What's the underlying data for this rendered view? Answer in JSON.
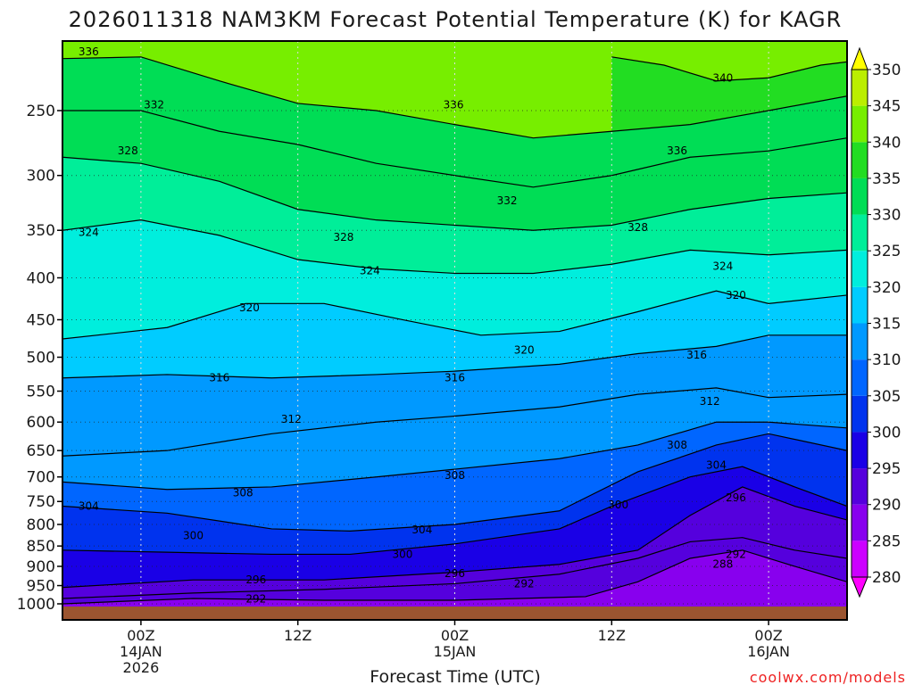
{
  "chart_data": {
    "type": "heatmap",
    "title": "2026011318 NAM3KM Forecast Potential Temperature (K) for KAGR",
    "xlabel": "Forecast Time (UTC)",
    "ylabel": "",
    "credit": "coolwx.com/models",
    "x_ticks": [
      {
        "hour": 6,
        "lines": [
          "00Z",
          "14JAN",
          "2026"
        ]
      },
      {
        "hour": 18,
        "lines": [
          "12Z"
        ]
      },
      {
        "hour": 30,
        "lines": [
          "00Z",
          "15JAN"
        ]
      },
      {
        "hour": 42,
        "lines": [
          "12Z"
        ]
      },
      {
        "hour": 54,
        "lines": [
          "00Z",
          "16JAN"
        ]
      }
    ],
    "xlim": [
      0,
      60
    ],
    "y_ticks": [
      250,
      300,
      350,
      400,
      450,
      500,
      550,
      600,
      650,
      700,
      750,
      800,
      850,
      900,
      950,
      1000
    ],
    "ylim_hpa": [
      1000,
      200
    ],
    "colorbar": {
      "levels": [
        280,
        285,
        290,
        295,
        300,
        305,
        310,
        315,
        320,
        325,
        330,
        335,
        340,
        345,
        350
      ],
      "colors": [
        "#ff00ff",
        "#cc00ff",
        "#8800ee",
        "#5500dd",
        "#1a00e6",
        "#0033ee",
        "#0066ff",
        "#0099ff",
        "#00ccff",
        "#00eedd",
        "#00ee99",
        "#00dd55",
        "#22dd22",
        "#77ee00",
        "#bbee00",
        "#ffff00"
      ]
    },
    "contours": [
      {
        "value": 288,
        "points": [
          [
            0,
            1000
          ],
          [
            10,
            985
          ],
          [
            20,
            990
          ],
          [
            30,
            990
          ],
          [
            40,
            980
          ],
          [
            44,
            940
          ],
          [
            48,
            880
          ],
          [
            52,
            860
          ],
          [
            56,
            900
          ],
          [
            60,
            940
          ]
        ]
      },
      {
        "value": 292,
        "points": [
          [
            0,
            985
          ],
          [
            10,
            970
          ],
          [
            20,
            960
          ],
          [
            30,
            945
          ],
          [
            38,
            920
          ],
          [
            44,
            880
          ],
          [
            48,
            840
          ],
          [
            52,
            830
          ],
          [
            56,
            860
          ],
          [
            60,
            880
          ]
        ]
      },
      {
        "value": 296,
        "points": [
          [
            0,
            955
          ],
          [
            10,
            935
          ],
          [
            20,
            935
          ],
          [
            30,
            915
          ],
          [
            38,
            895
          ],
          [
            44,
            860
          ],
          [
            48,
            780
          ],
          [
            52,
            720
          ],
          [
            56,
            760
          ],
          [
            60,
            790
          ]
        ]
      },
      {
        "value": 300,
        "points": [
          [
            0,
            860
          ],
          [
            8,
            865
          ],
          [
            16,
            870
          ],
          [
            22,
            870
          ],
          [
            30,
            845
          ],
          [
            38,
            810
          ],
          [
            42,
            760
          ],
          [
            48,
            700
          ],
          [
            52,
            680
          ],
          [
            56,
            720
          ],
          [
            60,
            760
          ]
        ]
      },
      {
        "value": 304,
        "points": [
          [
            0,
            760
          ],
          [
            8,
            775
          ],
          [
            16,
            810
          ],
          [
            22,
            815
          ],
          [
            30,
            800
          ],
          [
            38,
            770
          ],
          [
            44,
            690
          ],
          [
            50,
            640
          ],
          [
            54,
            620
          ],
          [
            60,
            650
          ]
        ]
      },
      {
        "value": 308,
        "points": [
          [
            0,
            710
          ],
          [
            8,
            725
          ],
          [
            16,
            720
          ],
          [
            24,
            700
          ],
          [
            30,
            685
          ],
          [
            38,
            665
          ],
          [
            44,
            640
          ],
          [
            50,
            600
          ],
          [
            54,
            600
          ],
          [
            60,
            610
          ]
        ]
      },
      {
        "value": 312,
        "points": [
          [
            0,
            660
          ],
          [
            8,
            650
          ],
          [
            16,
            620
          ],
          [
            24,
            600
          ],
          [
            30,
            590
          ],
          [
            38,
            575
          ],
          [
            44,
            555
          ],
          [
            50,
            545
          ],
          [
            54,
            560
          ],
          [
            60,
            555
          ]
        ]
      },
      {
        "value": 316,
        "points": [
          [
            0,
            530
          ],
          [
            8,
            525
          ],
          [
            16,
            530
          ],
          [
            24,
            525
          ],
          [
            30,
            520
          ],
          [
            38,
            510
          ],
          [
            44,
            495
          ],
          [
            50,
            485
          ],
          [
            54,
            470
          ],
          [
            60,
            470
          ]
        ]
      },
      {
        "value": 320,
        "points": [
          [
            0,
            475
          ],
          [
            8,
            460
          ],
          [
            14,
            430
          ],
          [
            20,
            430
          ],
          [
            26,
            450
          ],
          [
            32,
            470
          ],
          [
            38,
            465
          ],
          [
            44,
            440
          ],
          [
            50,
            415
          ],
          [
            54,
            430
          ],
          [
            60,
            420
          ]
        ]
      },
      {
        "value": 324,
        "points": [
          [
            0,
            350
          ],
          [
            6,
            340
          ],
          [
            12,
            355
          ],
          [
            18,
            380
          ],
          [
            24,
            390
          ],
          [
            30,
            395
          ],
          [
            36,
            395
          ],
          [
            42,
            385
          ],
          [
            48,
            370
          ],
          [
            54,
            375
          ],
          [
            60,
            370
          ]
        ]
      },
      {
        "value": 328,
        "points": [
          [
            0,
            285
          ],
          [
            6,
            290
          ],
          [
            12,
            305
          ],
          [
            18,
            330
          ],
          [
            24,
            340
          ],
          [
            30,
            345
          ],
          [
            36,
            350
          ],
          [
            42,
            345
          ],
          [
            48,
            330
          ],
          [
            54,
            320
          ],
          [
            60,
            315
          ]
        ]
      },
      {
        "value": 332,
        "points": [
          [
            0,
            250
          ],
          [
            6,
            250
          ],
          [
            12,
            265
          ],
          [
            18,
            275
          ],
          [
            24,
            290
          ],
          [
            30,
            300
          ],
          [
            36,
            310
          ],
          [
            42,
            300
          ],
          [
            48,
            285
          ],
          [
            54,
            280
          ],
          [
            60,
            270
          ]
        ]
      },
      {
        "value": 336,
        "points": [
          [
            0,
            216
          ],
          [
            6,
            215
          ],
          [
            12,
            230
          ],
          [
            18,
            245
          ],
          [
            24,
            250
          ],
          [
            30,
            260
          ],
          [
            36,
            270
          ],
          [
            42,
            265
          ],
          [
            48,
            260
          ],
          [
            54,
            250
          ],
          [
            60,
            240
          ]
        ]
      },
      {
        "value": 340,
        "points": [
          [
            42,
            215
          ],
          [
            46,
            220
          ],
          [
            50,
            230
          ],
          [
            54,
            228
          ],
          [
            58,
            220
          ],
          [
            60,
            218
          ]
        ]
      }
    ],
    "contour_labels": [
      {
        "value": "336",
        "hour": 2,
        "hpa": 212
      },
      {
        "value": "332",
        "hour": 7,
        "hpa": 246
      },
      {
        "value": "328",
        "hour": 5,
        "hpa": 280
      },
      {
        "value": "324",
        "hour": 2,
        "hpa": 352
      },
      {
        "value": "336",
        "hour": 29.9,
        "hpa": 246
      },
      {
        "value": "340",
        "hour": 50.5,
        "hpa": 228
      },
      {
        "value": "336",
        "hour": 47,
        "hpa": 280
      },
      {
        "value": "332",
        "hour": 34,
        "hpa": 322
      },
      {
        "value": "328",
        "hour": 21.5,
        "hpa": 357
      },
      {
        "value": "328",
        "hour": 44,
        "hpa": 347
      },
      {
        "value": "324",
        "hour": 23.5,
        "hpa": 392
      },
      {
        "value": "324",
        "hour": 50.5,
        "hpa": 387
      },
      {
        "value": "320",
        "hour": 14.3,
        "hpa": 435
      },
      {
        "value": "320",
        "hour": 51.5,
        "hpa": 420
      },
      {
        "value": "320",
        "hour": 35.3,
        "hpa": 490
      },
      {
        "value": "316",
        "hour": 12,
        "hpa": 530
      },
      {
        "value": "316",
        "hour": 30,
        "hpa": 530
      },
      {
        "value": "316",
        "hour": 48.5,
        "hpa": 497
      },
      {
        "value": "312",
        "hour": 17.5,
        "hpa": 595
      },
      {
        "value": "312",
        "hour": 49.5,
        "hpa": 566
      },
      {
        "value": "308",
        "hour": 47,
        "hpa": 640
      },
      {
        "value": "304",
        "hour": 50,
        "hpa": 677
      },
      {
        "value": "308",
        "hour": 30,
        "hpa": 697
      },
      {
        "value": "308",
        "hour": 13.8,
        "hpa": 732
      },
      {
        "value": "304",
        "hour": 2,
        "hpa": 760
      },
      {
        "value": "300",
        "hour": 42.5,
        "hpa": 757
      },
      {
        "value": "296",
        "hour": 51.5,
        "hpa": 742
      },
      {
        "value": "304",
        "hour": 27.5,
        "hpa": 812
      },
      {
        "value": "300",
        "hour": 10,
        "hpa": 826
      },
      {
        "value": "300",
        "hour": 26,
        "hpa": 870
      },
      {
        "value": "292",
        "hour": 51.5,
        "hpa": 870
      },
      {
        "value": "288",
        "hour": 50.5,
        "hpa": 895
      },
      {
        "value": "296",
        "hour": 30,
        "hpa": 918
      },
      {
        "value": "292",
        "hour": 35.3,
        "hpa": 945
      },
      {
        "value": "296",
        "hour": 14.8,
        "hpa": 935
      },
      {
        "value": "292",
        "hour": 14.8,
        "hpa": 986
      }
    ]
  }
}
